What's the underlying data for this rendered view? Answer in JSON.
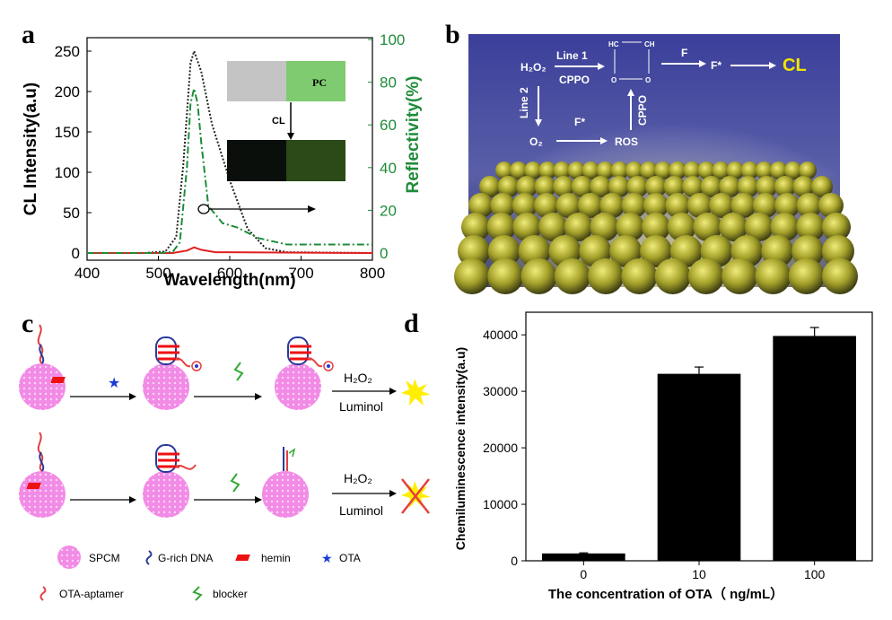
{
  "panels": {
    "a": "a",
    "b": "b",
    "c": "c",
    "d": "d"
  },
  "chart_data": [
    {
      "panel": "a",
      "type": "line",
      "xlabel": "Wavelength(nm)",
      "ylabel": "CL Intensity(a.u)",
      "ylabel_right": "Reflectivity(%)",
      "xlim": [
        400,
        800
      ],
      "ylim": [
        0,
        260
      ],
      "ylim_right": [
        0,
        100
      ],
      "x_ticks": [
        400,
        500,
        600,
        700,
        800
      ],
      "y_ticks": [
        0,
        50,
        100,
        150,
        200,
        250
      ],
      "y_ticks_right": [
        0,
        20,
        40,
        60,
        80,
        100
      ],
      "colors": {
        "dotted": "#222222",
        "red": "#e02020",
        "green": "#1e8c3a"
      },
      "series": [
        {
          "style": "dotted",
          "axis": "left",
          "x": [
            400,
            480,
            510,
            525,
            535,
            545,
            550,
            560,
            575,
            600,
            625,
            650,
            680,
            800
          ],
          "values": [
            0,
            0,
            2,
            20,
            110,
            235,
            250,
            225,
            160,
            90,
            30,
            6,
            1,
            0
          ]
        },
        {
          "style": "red",
          "axis": "left",
          "x": [
            400,
            520,
            540,
            550,
            560,
            580,
            800
          ],
          "values": [
            0,
            0,
            3,
            7,
            4,
            1,
            0
          ]
        },
        {
          "style": "dash-dot",
          "axis": "right",
          "x": [
            400,
            500,
            520,
            530,
            540,
            545,
            550,
            555,
            560,
            570,
            590,
            610,
            640,
            680,
            720,
            760,
            800
          ],
          "values": [
            0,
            0,
            0.5,
            5,
            40,
            70,
            77,
            70,
            52,
            22,
            14,
            12,
            7,
            4,
            4,
            4,
            4
          ]
        }
      ],
      "inset": {
        "top_label": "PC",
        "arrow_label": "CL"
      }
    },
    {
      "panel": "d",
      "type": "bar",
      "xlabel": "The concentration of OTA（ ng/mL）",
      "ylabel": "Chemiluminescence intensity(a.u)",
      "categories": [
        "0",
        "10",
        "100"
      ],
      "values": [
        1300,
        33100,
        39800
      ],
      "errors": [
        100,
        1200,
        1500
      ],
      "ylim": [
        0,
        44000
      ],
      "y_ticks": [
        0,
        10000,
        20000,
        30000,
        40000
      ],
      "bar_color": "#000000"
    }
  ],
  "panel_b": {
    "h2o2": "H₂O₂",
    "line1": "Line 1",
    "cppo": "CPPO",
    "hc": "HC",
    "ch": "CH",
    "o1": "O",
    "o2": "O",
    "f": "F",
    "fstar": "F*",
    "cl": "CL",
    "line2": "Line 2",
    "o2_label": "O₂",
    "f_star2": "F*",
    "ros": "ROS",
    "cppo2": "CPPO",
    "colors": {
      "bg_top": "#3b3f9a",
      "sphere": "#b8b224",
      "cl": "#f2e400"
    }
  },
  "panel_c": {
    "h2o2_top": "H₂O₂",
    "luminol_top": "Luminol",
    "h2o2_bottom": "H₂O₂",
    "luminol_bottom": "Luminol",
    "legend": {
      "spcm": "SPCM",
      "grich": "G-rich DNA",
      "hemin": "hemin",
      "ota": "OTA",
      "aptamer": "OTA-aptamer",
      "blocker": "blocker"
    },
    "colors": {
      "sphere": "#f28be6",
      "hemin": "#ee1111",
      "ota": "#1a3cd6",
      "aptamer": "#e34040",
      "blocker": "#33aa33",
      "dna": "#2a3a9a",
      "burst": "#ffee00"
    }
  }
}
